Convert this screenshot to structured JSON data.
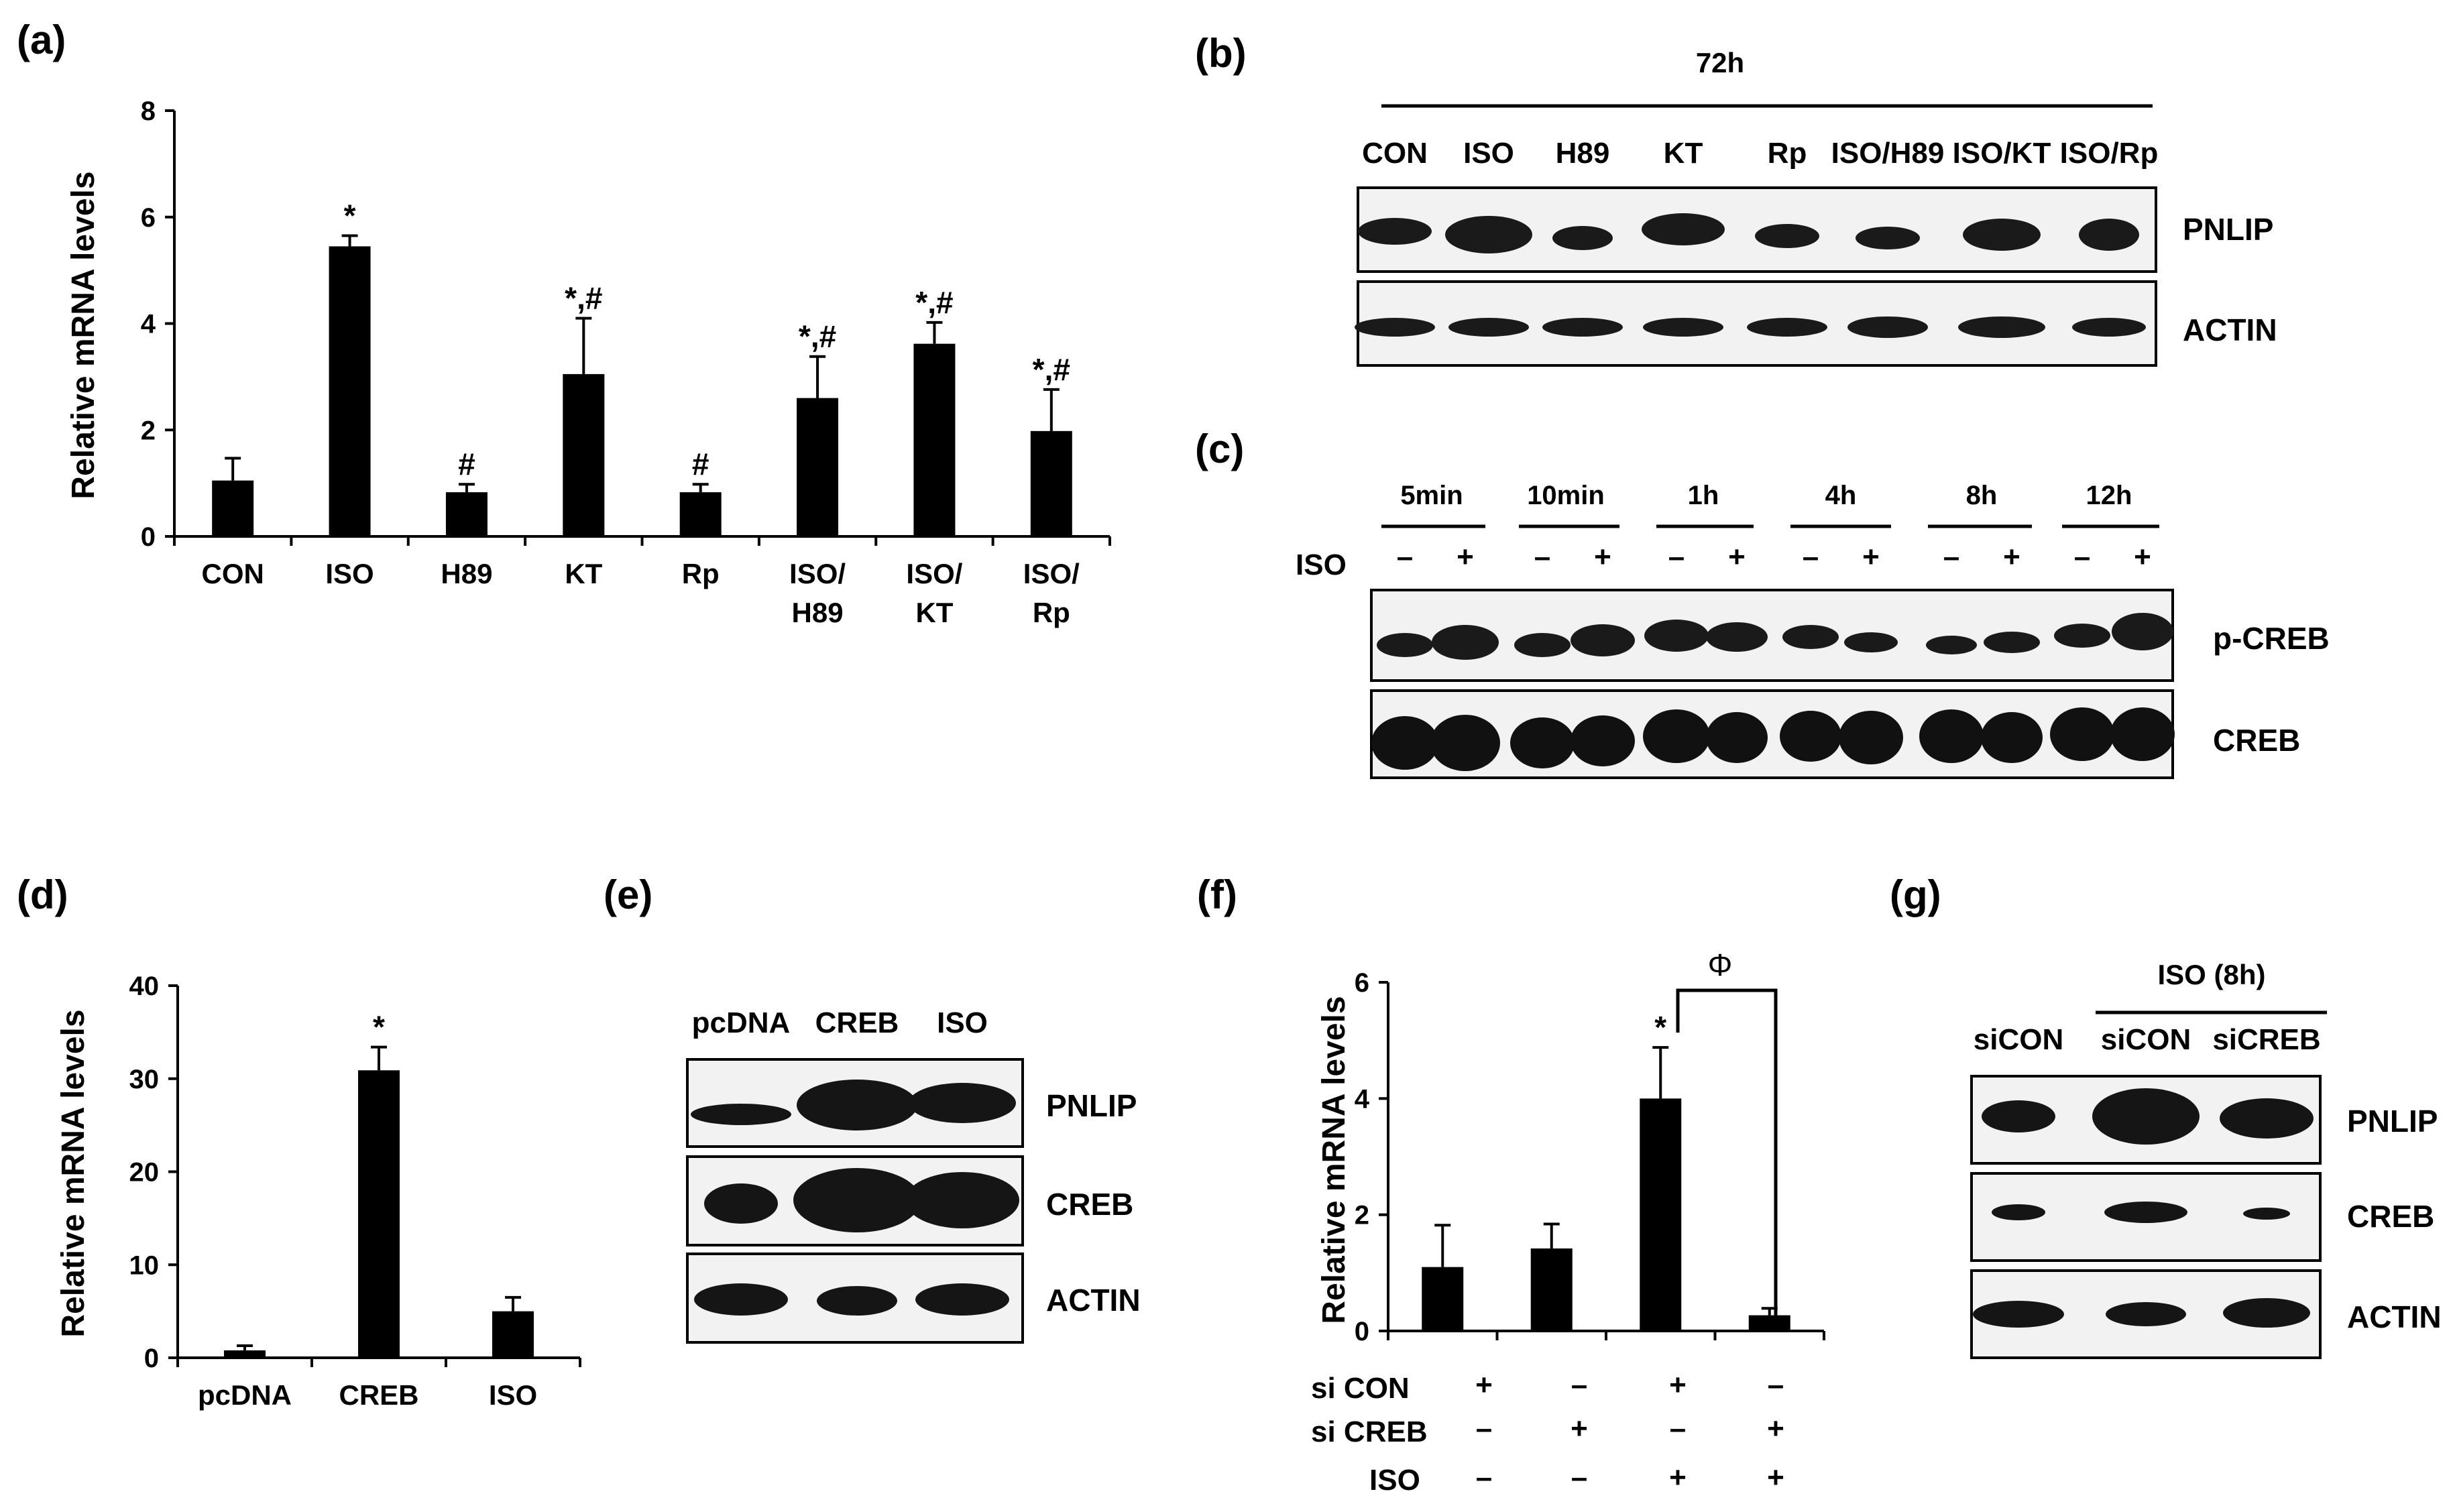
{
  "panels": {
    "a": {
      "label": "(a)"
    },
    "b": {
      "label": "(b)",
      "header": "72h",
      "lanes": [
        "CON",
        "ISO",
        "H89",
        "KT",
        "Rp",
        "ISO/H89",
        "ISO/KT",
        "ISO/Rp"
      ],
      "proteins": [
        "PNLIP",
        "ACTIN"
      ]
    },
    "c": {
      "label": "(c)",
      "times": [
        "5min",
        "10min",
        "1h",
        "4h",
        "8h",
        "12h"
      ],
      "iso_label": "ISO",
      "iso_states": [
        "–",
        "+",
        "–",
        "+",
        "–",
        "+",
        "–",
        "+",
        "–",
        "+",
        "–",
        "+"
      ],
      "proteins": [
        "p-CREB",
        "CREB"
      ]
    },
    "d": {
      "label": "(d)"
    },
    "e": {
      "label": "(e)",
      "lanes": [
        "pcDNA",
        "CREB",
        "ISO"
      ],
      "proteins": [
        "PNLIP",
        "CREB",
        "ACTIN"
      ]
    },
    "f": {
      "label": "(f)",
      "significance": "Φ",
      "conditions": [
        {
          "name": "si CON",
          "states": [
            "+",
            "–",
            "+",
            "–"
          ]
        },
        {
          "name": "si  CREB",
          "states": [
            "–",
            "+",
            "–",
            "+"
          ]
        },
        {
          "name": "ISO",
          "states": [
            "–",
            "–",
            "+",
            "+"
          ]
        }
      ]
    },
    "g": {
      "label": "(g)",
      "header": "ISO (8h)",
      "lanes": [
        "siCON",
        "siCON",
        "siCREB"
      ],
      "proteins": [
        "PNLIP",
        "CREB",
        "ACTIN"
      ]
    }
  },
  "chart_data": [
    {
      "id": "a",
      "type": "bar",
      "categories": [
        "CON",
        "ISO",
        "H89",
        "KT",
        "Rp",
        "ISO/\nH89",
        "ISO/\nKT",
        "ISO/\nRp"
      ],
      "values": [
        1.05,
        5.45,
        0.83,
        3.05,
        0.83,
        2.6,
        3.62,
        1.98
      ],
      "errors": [
        0.42,
        0.2,
        0.15,
        1.05,
        0.15,
        0.78,
        0.4,
        0.78
      ],
      "annotations": [
        "",
        "*",
        "#",
        "*,#",
        "#",
        "*,#",
        "*,#",
        "*,#"
      ],
      "ylabel": "Relative  mRNA  levels",
      "ylim": [
        0,
        8
      ],
      "yticks": [
        0,
        2,
        4,
        6,
        8
      ],
      "color": "#000000"
    },
    {
      "id": "d",
      "type": "bar",
      "categories": [
        "pcDNA",
        "CREB",
        "ISO"
      ],
      "values": [
        0.8,
        30.9,
        5.0
      ],
      "errors": [
        0.5,
        2.5,
        1.5
      ],
      "annotations": [
        "",
        "*",
        ""
      ],
      "ylabel": "Relative  mRNA  levels",
      "ylim": [
        0,
        40
      ],
      "yticks": [
        0,
        10,
        20,
        30,
        40
      ],
      "color": "#000000"
    },
    {
      "id": "f",
      "type": "bar",
      "categories": [
        "",
        "",
        "",
        ""
      ],
      "values": [
        1.1,
        1.42,
        4.0,
        0.27
      ],
      "errors": [
        0.72,
        0.42,
        0.88,
        0.12
      ],
      "annotations": [
        "",
        "",
        "*",
        ""
      ],
      "ylabel": "Relative  mRNA  levels",
      "ylim": [
        0,
        6
      ],
      "yticks": [
        0,
        2,
        4,
        6
      ],
      "color": "#000000"
    }
  ]
}
